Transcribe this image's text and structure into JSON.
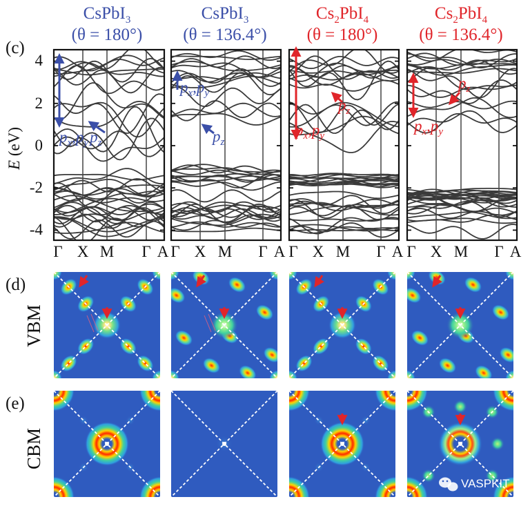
{
  "columns": [
    {
      "name": "CsPbI",
      "sub": "3",
      "angle_label": "(θ = 180°)",
      "color": "#3b4fa8"
    },
    {
      "name": "CsPbI",
      "sub": "3",
      "angle_label": "(θ = 136.4°)",
      "color": "#3b4fa8"
    },
    {
      "name": "Cs",
      "sub1": "2",
      "mid": "PbI",
      "sub": "4",
      "angle_label": "(θ = 180°)",
      "color": "#e0252a"
    },
    {
      "name": "Cs",
      "sub1": "2",
      "mid": "PbI",
      "sub": "4",
      "angle_label": "(θ = 136.4°)",
      "color": "#e0252a"
    }
  ],
  "panel_labels": {
    "c": "(c)",
    "d": "(d)",
    "e": "(e)"
  },
  "row_labels": {
    "vbm": "VBM",
    "cbm": "CBM"
  },
  "axis": {
    "ylabel_var": "E",
    "ylabel_unit": " (eV)",
    "yticks": [
      "4",
      "2",
      "0",
      "-2",
      "-4"
    ],
    "kpoints": [
      "Γ",
      "X",
      "M",
      "Γ",
      "A"
    ]
  },
  "annotations": {
    "p1_a": "p",
    "p1_a_sub": "x",
    "p1_comma": ",",
    "p1_b": "p",
    "p1_b_sub": "y",
    "p1_c": "p",
    "p1_c_sub": "z",
    "p2_top": "p",
    "p2_top_sub1": "x",
    "p2_top_comma": ",",
    "p2_top_b": "p",
    "p2_top_sub2": "y",
    "p2_bot": "p",
    "p2_bot_sub": "z",
    "p3_z": "p",
    "p3_z_sub": "z",
    "p3_xy": "p",
    "p3_xy_sub1": "x",
    "p3_xy_comma": ",",
    "p3_xy_b": "p",
    "p3_xy_sub2": "y",
    "p4_z": "p",
    "p4_z_sub": "z",
    "p4_xy": "p",
    "p4_xy_sub1": "x",
    "p4_xy_comma": ",",
    "p4_xy_b": "p",
    "p4_xy_sub2": "y"
  },
  "colors": {
    "blue": "#3b4fa8",
    "red": "#e0252a",
    "band": "#3a3a3a",
    "map_bg": "#2f5bbf"
  },
  "watermark": {
    "icon": "wechat-icon",
    "text": "VASPKIT"
  }
}
